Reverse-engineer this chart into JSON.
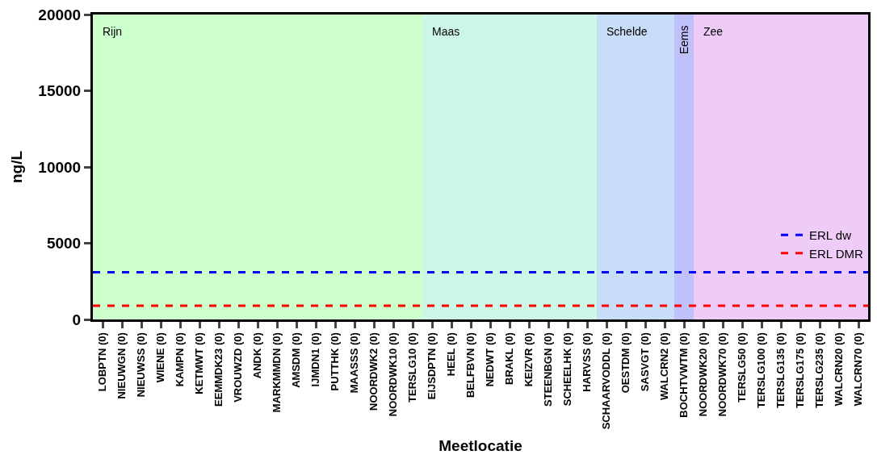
{
  "chart_data": {
    "type": "bar",
    "xlabel": "Meetlocatie",
    "ylabel": "ng/L",
    "categories": [
      "LOBPTN (0)",
      "NIEUWGN (0)",
      "NIEUWSS (0)",
      "WIENE (0)",
      "KAMPN (0)",
      "KETMWT (0)",
      "EEMMDK23 (0)",
      "VROUWZD (0)",
      "ANDK (0)",
      "MARKMMDN (0)",
      "AMSDM (0)",
      "IJMDN1 (0)",
      "PUTTHK (0)",
      "MAASSS (0)",
      "NOORDWK2 (0)",
      "NOORDWK10 (0)",
      "TERSLG10 (0)",
      "EIJSDPTN (0)",
      "HEEL (0)",
      "BELFBVN (0)",
      "NEDWT (0)",
      "BRAKL (0)",
      "KEIZVR (0)",
      "STEENBGN (0)",
      "SCHEELHK (0)",
      "HARVSS (0)",
      "SCHAARVODDL (0)",
      "OESTDM (0)",
      "SASVGT (0)",
      "WALCRN2 (0)",
      "BOCHTVWTM (0)",
      "NOORDWK20 (0)",
      "NOORDWK70 (0)",
      "TERSLG50 (0)",
      "TERSLG100 (0)",
      "TERSLG135 (0)",
      "TERSLG175 (0)",
      "TERSLG235 (0)",
      "WALCRN20 (0)",
      "WALCRN70 (0)"
    ],
    "values": [
      null,
      null,
      null,
      null,
      null,
      null,
      null,
      null,
      null,
      null,
      null,
      null,
      null,
      null,
      null,
      null,
      null,
      null,
      null,
      null,
      null,
      null,
      null,
      null,
      null,
      null,
      null,
      null,
      null,
      null,
      null,
      null,
      null,
      null,
      null,
      null,
      null,
      null,
      null,
      null
    ],
    "ylim": [
      0,
      20000
    ],
    "yticks": [
      0,
      5000,
      10000,
      15000,
      20000
    ],
    "grid": false,
    "legend": "right",
    "ref_lines": [
      {
        "axis": "y",
        "value": 3100,
        "label": "ERL dw",
        "color": "#0000ff",
        "line_style": "dashed"
      },
      {
        "axis": "y",
        "value": 900,
        "label": "ERL DMR",
        "color": "#ff0000",
        "line_style": "dashed"
      }
    ],
    "bands": [
      {
        "axis": "x",
        "from": "LOBPTN (0)",
        "to": "TERSLG10 (0)",
        "label": "Rijn",
        "color": "#ccffcc"
      },
      {
        "axis": "x",
        "from": "EIJSDPTN (0)",
        "to": "HARVSS (0)",
        "label": "Maas",
        "color": "#ccf7e6"
      },
      {
        "axis": "x",
        "from": "SCHAARVODDL (0)",
        "to": "WALCRN2 (0)",
        "label": "Schelde",
        "color": "#c8ddf7"
      },
      {
        "axis": "x",
        "from": "BOCHTVWTM (0)",
        "to": "BOCHTVWTM (0)",
        "label": "Eems",
        "color": "#c0c0fb"
      },
      {
        "axis": "x",
        "from": "NOORDWK20 (0)",
        "to": "WALCRN70 (0)",
        "label": "Zee",
        "color": "#eeccf7"
      }
    ]
  }
}
